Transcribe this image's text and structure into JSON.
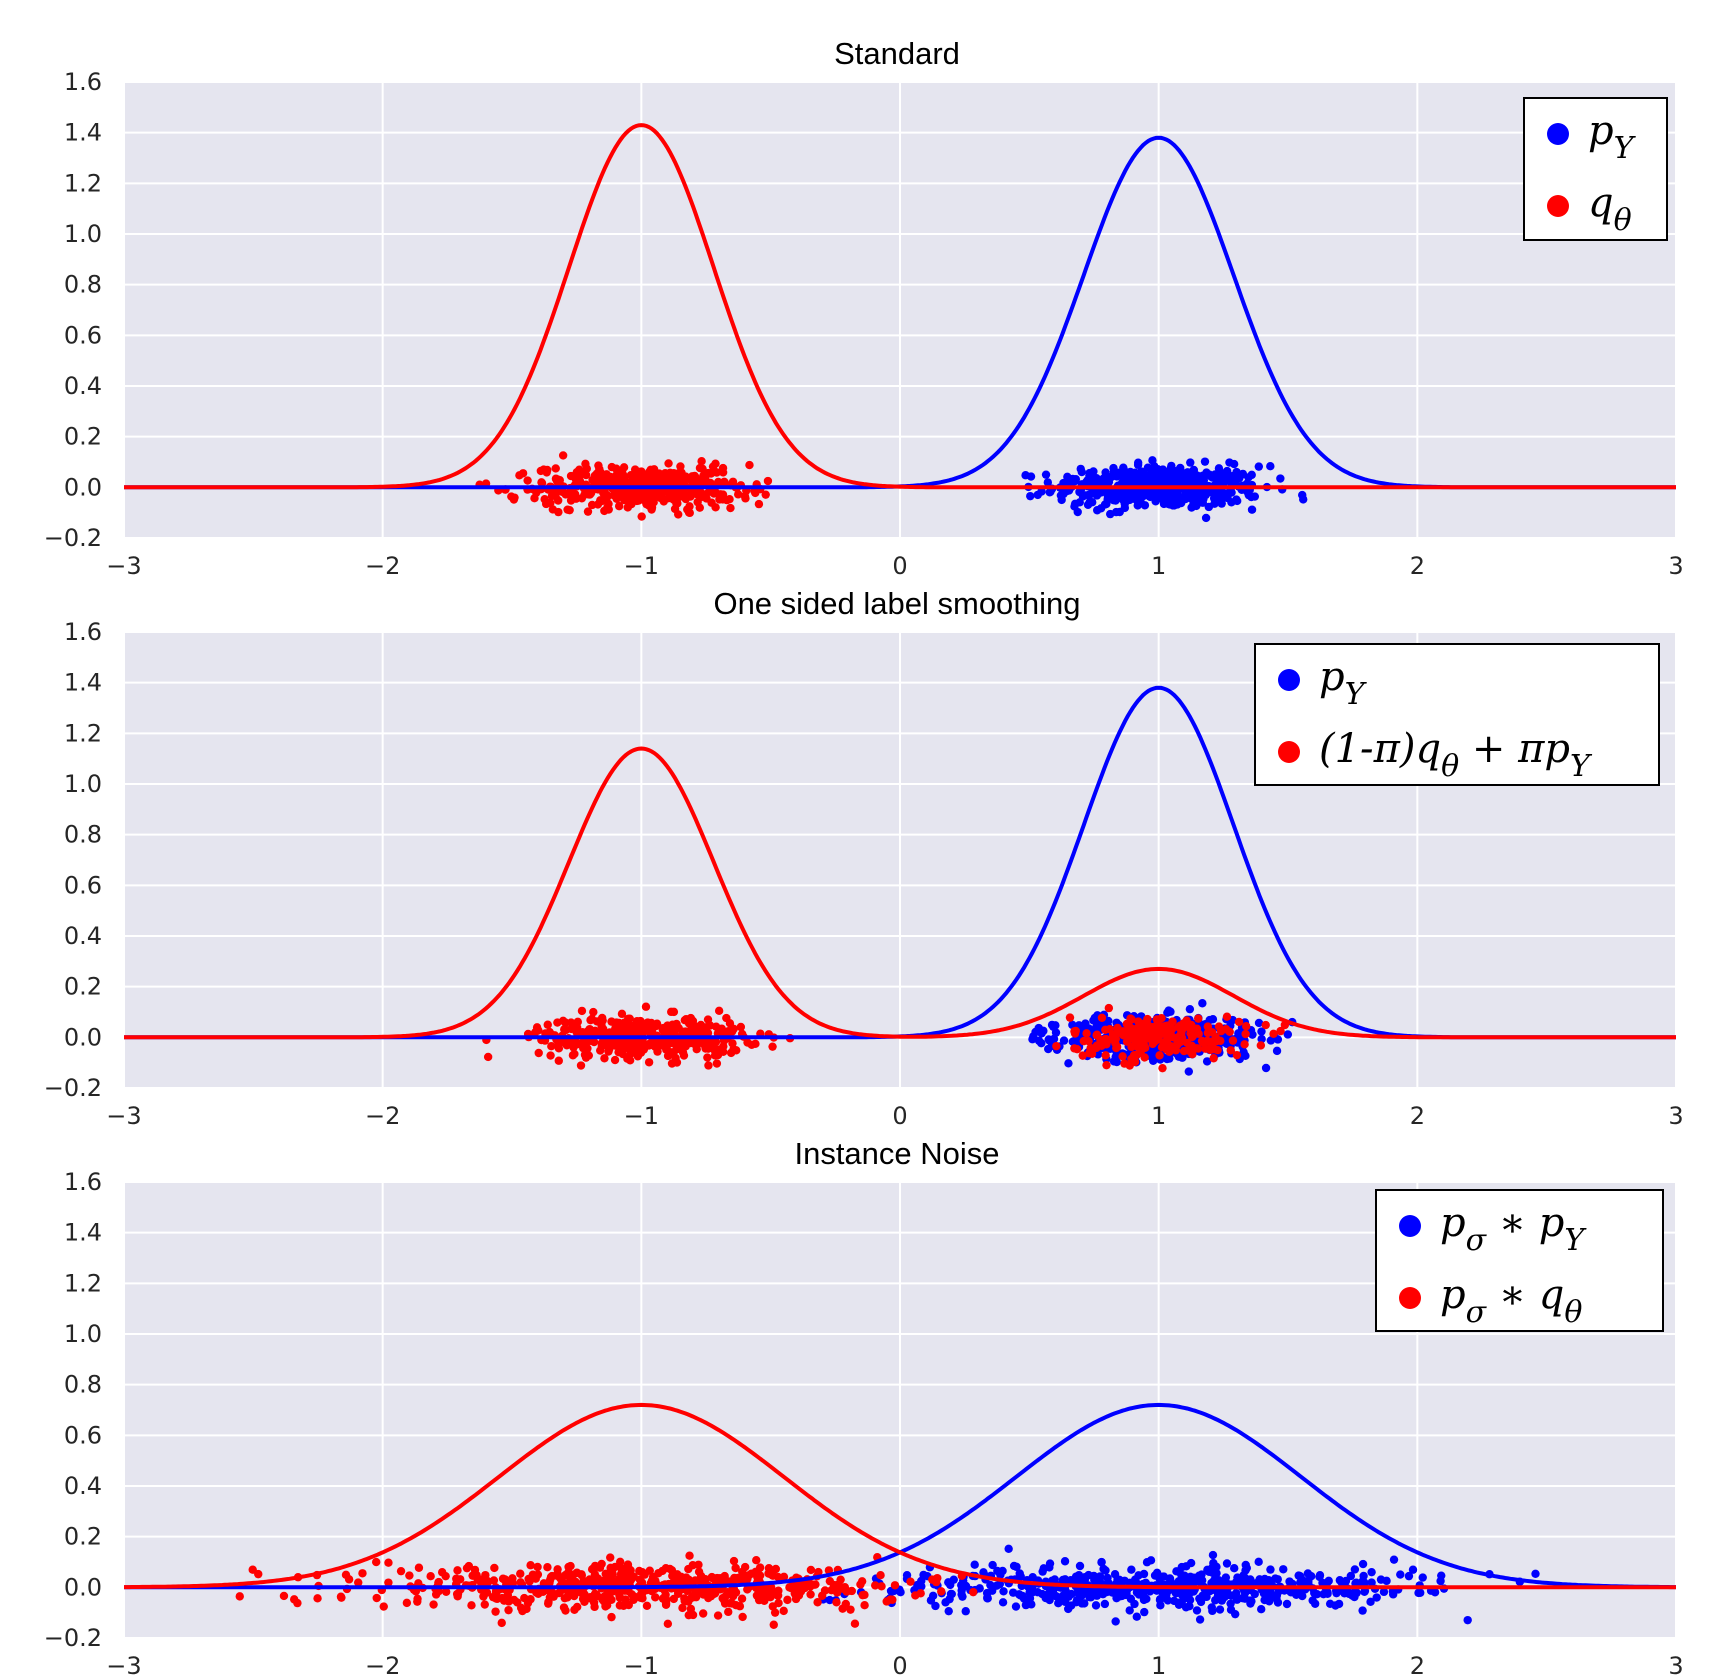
{
  "chart_data": [
    {
      "type": "line",
      "title": "Standard",
      "xlim": [
        -3,
        3
      ],
      "ylim": [
        -0.2,
        1.6
      ],
      "xticks": [
        "−3",
        "−2",
        "−1",
        "0",
        "1",
        "2",
        "3"
      ],
      "yticks": [
        "−0.2",
        "0.0",
        "0.2",
        "0.4",
        "0.6",
        "0.8",
        "1.0",
        "1.2",
        "1.4",
        "1.6"
      ],
      "grid": true,
      "legend_position": "top-right",
      "series": [
        {
          "name": "p_Y",
          "color": "#0000ff",
          "curve": [
            {
              "mean": 1.0,
              "peak": 1.38,
              "sd": 0.29
            }
          ],
          "scatter": {
            "mean": 1.0,
            "sd": 0.2,
            "n": 500,
            "x_range": [
              0.38,
              1.6
            ]
          }
        },
        {
          "name": "q_θ",
          "color": "#ff0000",
          "curve": [
            {
              "mean": -1.0,
              "peak": 1.43,
              "sd": 0.28
            }
          ],
          "scatter": {
            "mean": -1.0,
            "sd": 0.2,
            "n": 500,
            "x_range": [
              -1.65,
              -0.42
            ]
          }
        }
      ],
      "legend": [
        "p",
        "q"
      ],
      "legend_sub": [
        "Y",
        "θ"
      ]
    },
    {
      "type": "line",
      "title": "One sided label smoothing",
      "xlim": [
        -3,
        3
      ],
      "ylim": [
        -0.2,
        1.6
      ],
      "xticks": [
        "−3",
        "−2",
        "−1",
        "0",
        "1",
        "2",
        "3"
      ],
      "yticks": [
        "−0.2",
        "0.0",
        "0.2",
        "0.4",
        "0.6",
        "0.8",
        "1.0",
        "1.2",
        "1.4",
        "1.6"
      ],
      "grid": true,
      "legend_position": "top-right",
      "series": [
        {
          "name": "p_Y",
          "color": "#0000ff",
          "curve": [
            {
              "mean": 1.0,
              "peak": 1.38,
              "sd": 0.29
            }
          ],
          "scatter": {
            "mean": 1.0,
            "sd": 0.2,
            "n": 500,
            "x_range": [
              0.5,
              1.6
            ]
          }
        },
        {
          "name": "(1-π)q_θ + πp_Y",
          "color": "#ff0000",
          "curve": [
            {
              "mean": -1.0,
              "peak": 1.14,
              "sd": 0.28
            },
            {
              "mean": 1.0,
              "peak": 0.27,
              "sd": 0.29
            }
          ],
          "scatter": {
            "mean": -1.0,
            "sd": 0.2,
            "n": 400,
            "x_range": [
              -1.65,
              -0.42
            ]
          }
        }
      ],
      "legend": [
        "p",
        "(1-π)q"
      ],
      "legend_sub": [
        "Y",
        "θ"
      ],
      "legend_tail": [
        " + πp",
        "Y"
      ]
    },
    {
      "type": "line",
      "title": "Instance Noise",
      "xlim": [
        -3,
        3
      ],
      "ylim": [
        -0.2,
        1.6
      ],
      "xticks": [
        "−3",
        "−2",
        "−1",
        "0",
        "1",
        "2",
        "3"
      ],
      "yticks": [
        "−0.2",
        "0.0",
        "0.2",
        "0.4",
        "0.6",
        "0.8",
        "1.0",
        "1.2",
        "1.4",
        "1.6"
      ],
      "grid": true,
      "legend_position": "top-right",
      "series": [
        {
          "name": "p_σ ∗ p_Y",
          "color": "#0000ff",
          "curve": [
            {
              "mean": 1.0,
              "peak": 0.72,
              "sd": 0.55
            }
          ],
          "scatter": {
            "mean": 1.0,
            "sd": 0.5,
            "n": 600,
            "x_range": [
              -0.3,
              2.85
            ]
          }
        },
        {
          "name": "p_σ ∗ q_θ",
          "color": "#ff0000",
          "curve": [
            {
              "mean": -1.0,
              "peak": 0.72,
              "sd": 0.55
            }
          ],
          "scatter": {
            "mean": -1.0,
            "sd": 0.5,
            "n": 600,
            "x_range": [
              -2.85,
              0.3
            ]
          }
        }
      ],
      "legend": [
        "p",
        "p"
      ],
      "legend_sub": [
        "σ",
        "σ"
      ],
      "legend_mid": [
        " ∗ p",
        " ∗ q"
      ],
      "legend_sub2": [
        "Y",
        "θ"
      ]
    }
  ]
}
